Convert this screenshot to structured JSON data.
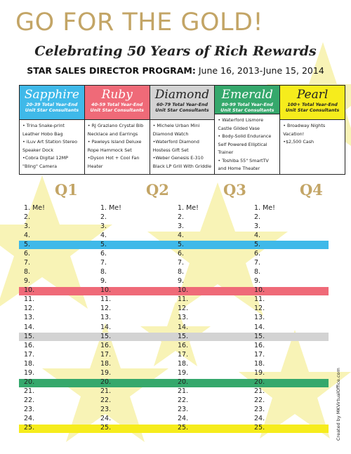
{
  "header": {
    "title": "GO FOR THE GOLD!",
    "subtitle": "Celebrating 50 Years of Rich Rewards",
    "program_label": "STAR SALES DIRECTOR PROGRAM:",
    "program_dates": "June 16, 2013-June 15, 2014"
  },
  "tiers": [
    {
      "name": "Sapphire",
      "color": "#3fb9e9",
      "requirement": "20-39 Total Year-End Unit Star Consultants",
      "prizes": [
        "• Trina Snake-print Leather Hobo Bag",
        "• iLuv Art Station Stereo Speaker Dock",
        "•Cobra Digital 12MP \"Bling\" Camera"
      ]
    },
    {
      "name": "Ruby",
      "color": "#ef6a78",
      "requirement": "40-59 Total Year-End Unit Star Consultants",
      "prizes": [
        "• RJ Graziano Crystal Bib Necklace and Earrings",
        "• Pawleys Island Deluxe Rope Hammock Set",
        "•Dyson Hot + Cool Fan Heater"
      ]
    },
    {
      "name": "Diamond",
      "color": "#d3d3d3",
      "requirement": "60-79 Total Year-End Unit Star Consultants",
      "prizes": [
        "• Michele Urban Mini Diamond Watch",
        "•Waterford Diamond Hostess Gift Set",
        "•Weber Genesis E-310 Black LP Grill With Griddle"
      ]
    },
    {
      "name": "Emerald",
      "color": "#35a86c",
      "requirement": "80-99 Total Year-End Unit Star Consultants",
      "prizes": [
        "• Waterford Lismore Castle Gilded Vase",
        "• Body-Solid Endurance Self Powered Elliptical Trainer",
        "• Toshiba 55\" SmartTV and Home Theater"
      ]
    },
    {
      "name": "Pearl",
      "color": "#f6ec1c",
      "requirement": "100+ Total Year-End Unit Star Consultants",
      "prizes": [
        "• Broadway Nights Vacation!",
        "•$2,500 Cash"
      ]
    }
  ],
  "quarters": [
    "Q1",
    "Q2",
    "Q3",
    "Q4"
  ],
  "rows": [
    "1. Me!",
    "2.",
    "3.",
    "4.",
    "5.",
    "6.",
    "7.",
    "8.",
    "9.",
    "10.",
    "11.",
    "12.",
    "13.",
    "14.",
    "15.",
    "16.",
    "17.",
    "18.",
    "19.",
    "20.",
    "21.",
    "22.",
    "23.",
    "24.",
    "25."
  ],
  "credit": "Created by MKVirtualOffice.com"
}
